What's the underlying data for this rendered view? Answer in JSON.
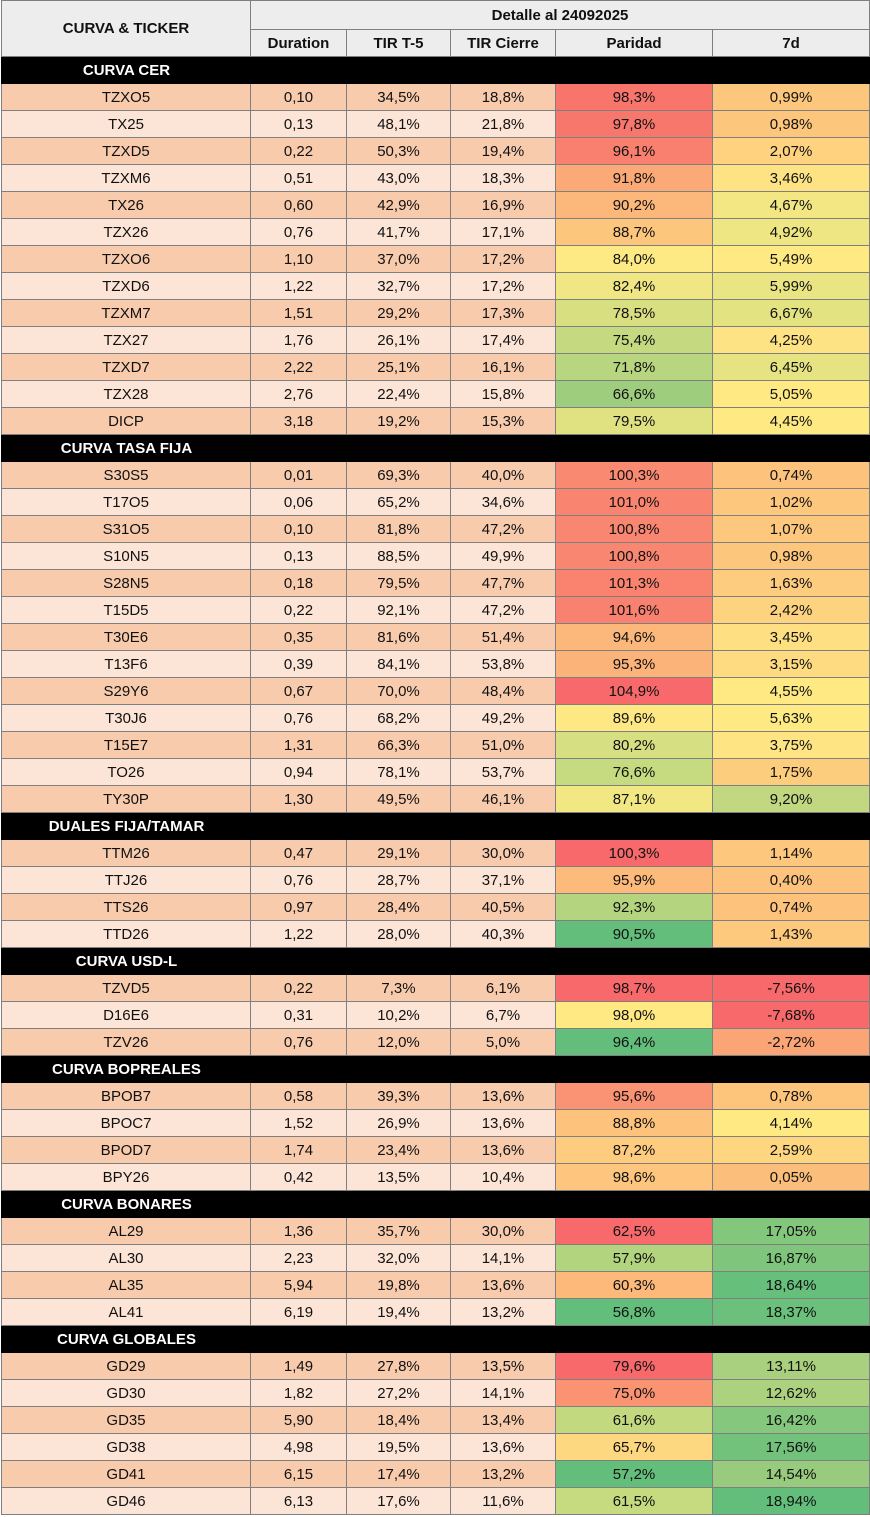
{
  "header": {
    "left_title": "CURVA & TICKER",
    "group_title": "Detalle al 24092025",
    "columns": [
      "Duration",
      "TIR T-5",
      "TIR Cierre",
      "Paridad",
      "7d"
    ]
  },
  "colors": {
    "row_dark": "#f8cbad",
    "row_light": "#fce4d6",
    "section_bg": "#000000",
    "header_bg": "#ededed"
  },
  "sections": [
    {
      "title": "CURVA CER",
      "rows": [
        {
          "ticker": "TZXO5",
          "duration": "0,10",
          "tir_t5": "34,5%",
          "tir_cierre": "18,8%",
          "paridad": "98,3%",
          "d7": "0,99%",
          "paridad_color": "#f8756b",
          "d7_color": "#fdc67d"
        },
        {
          "ticker": "TX25",
          "duration": "0,13",
          "tir_t5": "48,1%",
          "tir_cierre": "21,8%",
          "paridad": "97,8%",
          "d7": "0,98%",
          "paridad_color": "#f8776c",
          "d7_color": "#fdc67d"
        },
        {
          "ticker": "TZXD5",
          "duration": "0,22",
          "tir_t5": "50,3%",
          "tir_cierre": "19,4%",
          "paridad": "96,1%",
          "d7": "2,07%",
          "paridad_color": "#f97f6e",
          "d7_color": "#fed27f"
        },
        {
          "ticker": "TZXM6",
          "duration": "0,51",
          "tir_t5": "43,0%",
          "tir_cierre": "18,3%",
          "paridad": "91,8%",
          "d7": "3,46%",
          "paridad_color": "#fbaa77",
          "d7_color": "#fde383"
        },
        {
          "ticker": "TX26",
          "duration": "0,60",
          "tir_t5": "42,9%",
          "tir_cierre": "16,9%",
          "paridad": "90,2%",
          "d7": "4,67%",
          "paridad_color": "#fcb77a",
          "d7_color": "#f2e783"
        },
        {
          "ticker": "TZX26",
          "duration": "0,76",
          "tir_t5": "41,7%",
          "tir_cierre": "17,1%",
          "paridad": "88,7%",
          "d7": "4,92%",
          "paridad_color": "#fdc67d",
          "d7_color": "#eee683"
        },
        {
          "ticker": "TZXO6",
          "duration": "1,10",
          "tir_t5": "37,0%",
          "tir_cierre": "17,2%",
          "paridad": "84,0%",
          "d7": "5,49%",
          "paridad_color": "#fdea84",
          "d7_color": "#fee983"
        },
        {
          "ticker": "TZXD6",
          "duration": "1,22",
          "tir_t5": "32,7%",
          "tir_cierre": "17,2%",
          "paridad": "82,4%",
          "d7": "5,99%",
          "paridad_color": "#f0e683",
          "d7_color": "#e9e583"
        },
        {
          "ticker": "TZXM7",
          "duration": "1,51",
          "tir_t5": "29,2%",
          "tir_cierre": "17,3%",
          "paridad": "78,5%",
          "d7": "6,67%",
          "paridad_color": "#d7df81",
          "d7_color": "#e3e382"
        },
        {
          "ticker": "TZX27",
          "duration": "1,76",
          "tir_t5": "26,1%",
          "tir_cierre": "17,4%",
          "paridad": "75,4%",
          "d7": "4,25%",
          "paridad_color": "#c4d980",
          "d7_color": "#fde383"
        },
        {
          "ticker": "TZXD7",
          "duration": "2,22",
          "tir_t5": "25,1%",
          "tir_cierre": "16,1%",
          "paridad": "71,8%",
          "d7": "6,45%",
          "paridad_color": "#b8d57f",
          "d7_color": "#e6e482"
        },
        {
          "ticker": "TZX28",
          "duration": "2,76",
          "tir_t5": "22,4%",
          "tir_cierre": "15,8%",
          "paridad": "66,6%",
          "d7": "5,05%",
          "paridad_color": "#9fcd7e",
          "d7_color": "#fee983"
        },
        {
          "ticker": "DICP",
          "duration": "3,18",
          "tir_t5": "19,2%",
          "tir_cierre": "15,3%",
          "paridad": "79,5%",
          "d7": "4,45%",
          "paridad_color": "#e0e282",
          "d7_color": "#fee983"
        }
      ]
    },
    {
      "title": "CURVA TASA FIJA",
      "rows": [
        {
          "ticker": "S30S5",
          "duration": "0,01",
          "tir_t5": "69,3%",
          "tir_cierre": "40,0%",
          "paridad": "100,3%",
          "d7": "0,74%",
          "paridad_color": "#f98971",
          "d7_color": "#fdc37c"
        },
        {
          "ticker": "T17O5",
          "duration": "0,06",
          "tir_t5": "65,2%",
          "tir_cierre": "34,6%",
          "paridad": "101,0%",
          "d7": "1,02%",
          "paridad_color": "#f98570",
          "d7_color": "#fdc77d"
        },
        {
          "ticker": "S31O5",
          "duration": "0,10",
          "tir_t5": "81,8%",
          "tir_cierre": "47,2%",
          "paridad": "100,8%",
          "d7": "1,07%",
          "paridad_color": "#f98670",
          "d7_color": "#fdc87d"
        },
        {
          "ticker": "S10N5",
          "duration": "0,13",
          "tir_t5": "88,5%",
          "tir_cierre": "49,9%",
          "paridad": "100,8%",
          "d7": "0,98%",
          "paridad_color": "#f98670",
          "d7_color": "#fdc67d"
        },
        {
          "ticker": "S28N5",
          "duration": "0,18",
          "tir_t5": "79,5%",
          "tir_cierre": "47,7%",
          "paridad": "101,3%",
          "d7": "1,63%",
          "paridad_color": "#f9836f",
          "d7_color": "#fdcc7e"
        },
        {
          "ticker": "T15D5",
          "duration": "0,22",
          "tir_t5": "92,1%",
          "tir_cierre": "47,2%",
          "paridad": "101,6%",
          "d7": "2,42%",
          "paridad_color": "#f9816f",
          "d7_color": "#fed380"
        },
        {
          "ticker": "T30E6",
          "duration": "0,35",
          "tir_t5": "81,6%",
          "tir_cierre": "51,4%",
          "paridad": "94,6%",
          "d7": "3,45%",
          "paridad_color": "#fcb87a",
          "d7_color": "#fee082"
        },
        {
          "ticker": "T13F6",
          "duration": "0,39",
          "tir_t5": "84,1%",
          "tir_cierre": "53,8%",
          "paridad": "95,3%",
          "d7": "3,15%",
          "paridad_color": "#fcb379",
          "d7_color": "#fedb81"
        },
        {
          "ticker": "S29Y6",
          "duration": "0,67",
          "tir_t5": "70,0%",
          "tir_cierre": "48,4%",
          "paridad": "104,9%",
          "d7": "4,55%",
          "paridad_color": "#f8696b",
          "d7_color": "#fee983"
        },
        {
          "ticker": "T30J6",
          "duration": "0,76",
          "tir_t5": "68,2%",
          "tir_cierre": "49,2%",
          "paridad": "89,6%",
          "d7": "5,63%",
          "paridad_color": "#fde883",
          "d7_color": "#fee983"
        },
        {
          "ticker": "T15E7",
          "duration": "1,31",
          "tir_t5": "66,3%",
          "tir_cierre": "51,0%",
          "paridad": "80,2%",
          "d7": "3,75%",
          "paridad_color": "#d6df81",
          "d7_color": "#fee482"
        },
        {
          "ticker": "TO26",
          "duration": "0,94",
          "tir_t5": "78,1%",
          "tir_cierre": "53,7%",
          "paridad": "76,6%",
          "d7": "1,75%",
          "paridad_color": "#c6da80",
          "d7_color": "#fdcd7e"
        },
        {
          "ticker": "TY30P",
          "duration": "1,30",
          "tir_t5": "49,5%",
          "tir_cierre": "46,1%",
          "paridad": "87,1%",
          "d7": "9,20%",
          "paridad_color": "#f1e783",
          "d7_color": "#c1d880"
        }
      ]
    },
    {
      "title": "DUALES FIJA/TAMAR",
      "rows": [
        {
          "ticker": "TTM26",
          "duration": "0,47",
          "tir_t5": "29,1%",
          "tir_cierre": "30,0%",
          "paridad": "100,3%",
          "d7": "1,14%",
          "paridad_color": "#f8696b",
          "d7_color": "#fdc87d"
        },
        {
          "ticker": "TTJ26",
          "duration": "0,76",
          "tir_t5": "28,7%",
          "tir_cierre": "37,1%",
          "paridad": "95,9%",
          "d7": "0,40%",
          "paridad_color": "#fcbb7b",
          "d7_color": "#fdc27c"
        },
        {
          "ticker": "TTS26",
          "duration": "0,97",
          "tir_t5": "28,4%",
          "tir_cierre": "40,5%",
          "paridad": "92,3%",
          "d7": "0,74%",
          "paridad_color": "#b4d47f",
          "d7_color": "#fdc37c"
        },
        {
          "ticker": "TTD26",
          "duration": "1,22",
          "tir_t5": "28,0%",
          "tir_cierre": "40,3%",
          "paridad": "90,5%",
          "d7": "1,43%",
          "paridad_color": "#63be7b",
          "d7_color": "#fdca7d"
        }
      ]
    },
    {
      "title": "CURVA USD-L",
      "rows": [
        {
          "ticker": "TZVD5",
          "duration": "0,22",
          "tir_t5": "7,3%",
          "tir_cierre": "6,1%",
          "paridad": "98,7%",
          "d7": "-7,56%",
          "paridad_color": "#f8696b",
          "d7_color": "#f8696b"
        },
        {
          "ticker": "D16E6",
          "duration": "0,31",
          "tir_t5": "10,2%",
          "tir_cierre": "6,7%",
          "paridad": "98,0%",
          "d7": "-7,68%",
          "paridad_color": "#fee983",
          "d7_color": "#f8696b"
        },
        {
          "ticker": "TZV26",
          "duration": "0,76",
          "tir_t5": "12,0%",
          "tir_cierre": "5,0%",
          "paridad": "96,4%",
          "d7": "-2,72%",
          "paridad_color": "#63be7b",
          "d7_color": "#fba577"
        }
      ]
    },
    {
      "title": "CURVA BOPREALES",
      "rows": [
        {
          "ticker": "BPOB7",
          "duration": "0,58",
          "tir_t5": "39,3%",
          "tir_cierre": "13,6%",
          "paridad": "95,6%",
          "d7": "0,78%",
          "paridad_color": "#fa9373",
          "d7_color": "#fdc47c"
        },
        {
          "ticker": "BPOC7",
          "duration": "1,52",
          "tir_t5": "26,9%",
          "tir_cierre": "13,6%",
          "paridad": "88,8%",
          "d7": "4,14%",
          "paridad_color": "#fdc27c",
          "d7_color": "#fee983"
        },
        {
          "ticker": "BPOD7",
          "duration": "1,74",
          "tir_t5": "23,4%",
          "tir_cierre": "13,6%",
          "paridad": "87,2%",
          "d7": "2,59%",
          "paridad_color": "#fdcc7e",
          "d7_color": "#fed680"
        },
        {
          "ticker": "BPY26",
          "duration": "0,42",
          "tir_t5": "13,5%",
          "tir_cierre": "10,4%",
          "paridad": "98,6%",
          "d7": "0,05%",
          "paridad_color": "#fdc57d",
          "d7_color": "#fcbf7b"
        }
      ]
    },
    {
      "title": "CURVA BONARES",
      "rows": [
        {
          "ticker": "AL29",
          "duration": "1,36",
          "tir_t5": "35,7%",
          "tir_cierre": "30,0%",
          "paridad": "62,5%",
          "d7": "17,05%",
          "paridad_color": "#f8696b",
          "d7_color": "#83c77d"
        },
        {
          "ticker": "AL30",
          "duration": "2,23",
          "tir_t5": "32,0%",
          "tir_cierre": "14,1%",
          "paridad": "57,9%",
          "d7": "16,87%",
          "paridad_color": "#b3d47f",
          "d7_color": "#7fc67c"
        },
        {
          "ticker": "AL35",
          "duration": "5,94",
          "tir_t5": "19,8%",
          "tir_cierre": "13,6%",
          "paridad": "60,3%",
          "d7": "18,64%",
          "paridad_color": "#fcb97a",
          "d7_color": "#66bf7b"
        },
        {
          "ticker": "AL41",
          "duration": "6,19",
          "tir_t5": "19,4%",
          "tir_cierre": "13,2%",
          "paridad": "56,8%",
          "d7": "18,37%",
          "paridad_color": "#63be7b",
          "d7_color": "#6bc17b"
        }
      ]
    },
    {
      "title": "CURVA GLOBALES",
      "rows": [
        {
          "ticker": "GD29",
          "duration": "1,49",
          "tir_t5": "27,8%",
          "tir_cierre": "13,5%",
          "paridad": "79,6%",
          "d7": "13,11%",
          "paridad_color": "#f8696b",
          "d7_color": "#a9d07e"
        },
        {
          "ticker": "GD30",
          "duration": "1,82",
          "tir_t5": "27,2%",
          "tir_cierre": "14,1%",
          "paridad": "75,0%",
          "d7": "12,62%",
          "paridad_color": "#fa9372",
          "d7_color": "#add27f"
        },
        {
          "ticker": "GD35",
          "duration": "5,90",
          "tir_t5": "18,4%",
          "tir_cierre": "13,4%",
          "paridad": "61,6%",
          "d7": "16,42%",
          "paridad_color": "#c3d980",
          "d7_color": "#85c77d"
        },
        {
          "ticker": "GD38",
          "duration": "4,98",
          "tir_t5": "19,5%",
          "tir_cierre": "13,6%",
          "paridad": "65,7%",
          "d7": "17,56%",
          "paridad_color": "#fdd880",
          "d7_color": "#72c27c"
        },
        {
          "ticker": "GD41",
          "duration": "6,15",
          "tir_t5": "17,4%",
          "tir_cierre": "13,2%",
          "paridad": "57,2%",
          "d7": "14,54%",
          "paridad_color": "#63be7b",
          "d7_color": "#98cb7e"
        },
        {
          "ticker": "GD46",
          "duration": "6,13",
          "tir_t5": "17,6%",
          "tir_cierre": "11,6%",
          "paridad": "61,5%",
          "d7": "18,94%",
          "paridad_color": "#c6da80",
          "d7_color": "#63be7b"
        }
      ]
    }
  ]
}
